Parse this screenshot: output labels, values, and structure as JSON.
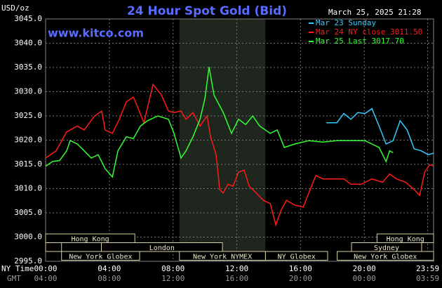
{
  "chart_data": {
    "type": "line",
    "title": "24 Hour Spot Gold (Bid)",
    "y_axis_label": "USD/oz",
    "timestamp": "March 25, 2025 21:28",
    "website": "www.kitco.com",
    "x_axis_label": "NY Time",
    "x2_axis_label": "GMT",
    "xlim": [
      0,
      24.35
    ],
    "ylim": [
      2995,
      3045
    ],
    "yticks": [
      {
        "value": 3045,
        "label": "3045.0"
      },
      {
        "value": 3040,
        "label": "3040.0"
      },
      {
        "value": 3035,
        "label": "3035.0"
      },
      {
        "value": 3030,
        "label": "3030.0"
      },
      {
        "value": 3025,
        "label": "3025.0"
      },
      {
        "value": 3020,
        "label": "3020.0"
      },
      {
        "value": 3015,
        "label": "3015.0"
      },
      {
        "value": 3010,
        "label": "3010.0"
      },
      {
        "value": 3005,
        "label": "3005.0"
      },
      {
        "value": 3000,
        "label": "3000.0"
      },
      {
        "value": 2995,
        "label": "2995.0"
      }
    ],
    "xticks": [
      {
        "value": 0,
        "label": "00:00"
      },
      {
        "value": 4,
        "label": "04:00"
      },
      {
        "value": 8,
        "label": "08:00"
      },
      {
        "value": 12,
        "label": "12:00"
      },
      {
        "value": 16,
        "label": "16:00"
      },
      {
        "value": 20,
        "label": "20:00"
      },
      {
        "value": 23.98,
        "label": "23:59"
      }
    ],
    "gmt_tick_labels": [
      "04:00",
      "08:00",
      "12:00",
      "16:00",
      "20:00",
      "00:00",
      "03:59"
    ],
    "grid": true,
    "shaded_session": [
      2,
      1
    ],
    "session_rows": [
      [
        {
          "label": "Hong Kong",
          "start": 0,
          "end": 5.6
        },
        {
          "label": "Hong Kong",
          "start": 20.8,
          "end": 24.35
        }
      ],
      [
        {
          "start": 0,
          "end": 1
        },
        {
          "label": "London",
          "start": 3.5,
          "end": 11.1
        },
        {
          "label": "Sydney",
          "start": 19.2,
          "end": 23.6
        }
      ],
      [
        {
          "label": "New York Globex",
          "start": 1,
          "end": 5.9
        },
        {
          "label": "New York NYMEX",
          "start": 8.4,
          "end": 13.8
        },
        {
          "label": "NY Globex",
          "start": 13.8,
          "end": 17.7
        },
        {
          "label": "New York Globex",
          "start": 18.3,
          "end": 24.35
        }
      ]
    ],
    "series": [
      {
        "name": "Mar 23 Sunday",
        "color": "#33ccff",
        "x": [
          17.62,
          18.28,
          18.72,
          19.16,
          19.6,
          20.04,
          20.48,
          20.93,
          21.37,
          21.81,
          22.25,
          22.69,
          23.13,
          23.57,
          24.0,
          24.35
        ],
        "values": [
          3023.6,
          3023.6,
          3025.5,
          3024.3,
          3025.7,
          3025.5,
          3026.5,
          3022.9,
          3019.2,
          3019.9,
          3024.0,
          3022.1,
          3018.2,
          3017.8,
          3017.0,
          3017.3
        ]
      },
      {
        "name": "Mar 24 NY close 3011.50",
        "color": "#ff1a1a",
        "x": [
          0,
          0.66,
          1.32,
          1.98,
          2.42,
          3.08,
          3.52,
          3.74,
          4.19,
          4.63,
          5.07,
          5.51,
          5.73,
          6.17,
          6.74,
          7.27,
          7.71,
          8.06,
          8.5,
          8.81,
          9.25,
          9.69,
          10.13,
          10.35,
          10.7,
          10.93,
          11.15,
          11.45,
          11.76,
          12.11,
          12.46,
          12.78,
          13.22,
          13.66,
          14.1,
          14.45,
          14.76,
          15.11,
          15.64,
          16.17,
          16.52,
          16.96,
          17.4,
          18.06,
          18.72,
          19.16,
          19.82,
          20.48,
          21.15,
          21.59,
          22.03,
          22.6,
          23.13,
          23.48,
          23.79,
          24.1,
          24.35
        ],
        "values": [
          3016.3,
          3017.8,
          3021.7,
          3022.9,
          3022.1,
          3025.0,
          3026.0,
          3022.1,
          3021.4,
          3024.3,
          3027.9,
          3028.9,
          3027.2,
          3023.6,
          3031.5,
          3029.3,
          3026.0,
          3025.7,
          3026.0,
          3024.3,
          3025.7,
          3022.9,
          3025.0,
          3020.7,
          3017.0,
          3009.8,
          3009.1,
          3010.9,
          3010.5,
          3013.4,
          3013.8,
          3010.5,
          3009.1,
          3007.6,
          3006.9,
          3002.5,
          3005.4,
          3007.6,
          3006.6,
          3006.2,
          3009.1,
          3012.7,
          3012.0,
          3012.0,
          3012.0,
          3010.9,
          3010.9,
          3012.0,
          3011.3,
          3013.0,
          3012.0,
          3011.3,
          3009.8,
          3008.6,
          3013.4,
          3014.9,
          3014.7
        ]
      },
      {
        "name": "Mar 25 Last 3017.70",
        "color": "#33ff33",
        "x": [
          0,
          0.44,
          0.88,
          1.32,
          1.54,
          1.98,
          2.42,
          2.86,
          3.3,
          3.74,
          4.19,
          4.54,
          5.07,
          5.51,
          5.95,
          6.39,
          7.05,
          7.71,
          8.06,
          8.5,
          8.81,
          9.25,
          9.69,
          10.0,
          10.26,
          10.57,
          11.15,
          11.67,
          12.11,
          12.56,
          13.0,
          13.44,
          14.1,
          14.54,
          14.98,
          15.64,
          16.52,
          17.4,
          18.28,
          19.16,
          20.04,
          20.93,
          21.37,
          21.59,
          21.81
        ],
        "values": [
          3014.6,
          3015.6,
          3015.8,
          3017.8,
          3019.9,
          3019.2,
          3017.8,
          3016.3,
          3017.0,
          3014.1,
          3012.4,
          3017.8,
          3020.7,
          3020.3,
          3022.9,
          3024.0,
          3025.0,
          3024.3,
          3021.4,
          3016.3,
          3017.8,
          3020.7,
          3024.3,
          3028.6,
          3035.1,
          3029.3,
          3025.7,
          3021.4,
          3024.3,
          3023.2,
          3025.0,
          3022.9,
          3021.4,
          3022.1,
          3018.5,
          3019.2,
          3019.9,
          3019.6,
          3019.9,
          3019.9,
          3019.9,
          3018.5,
          3015.6,
          3017.8,
          3017.4
        ]
      }
    ]
  }
}
